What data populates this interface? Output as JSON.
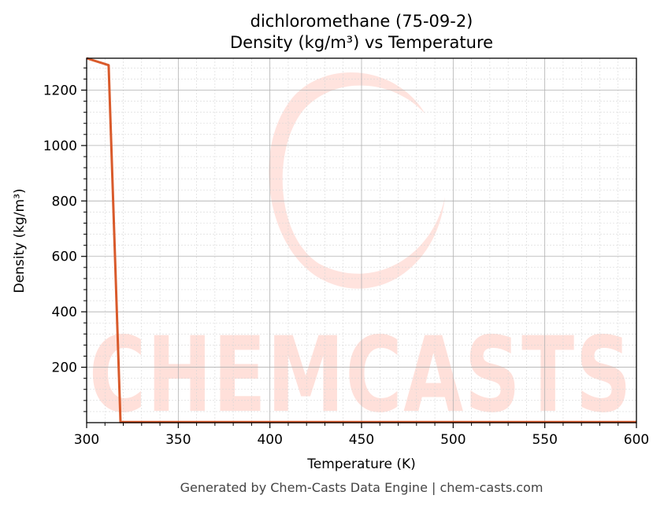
{
  "chart_data": {
    "type": "line",
    "title": "dichloromethane (75-09-2)",
    "subtitle": "Density (kg/m³) vs Temperature",
    "xlabel": "Temperature (K)",
    "ylabel": "Density (kg/m³)",
    "xlim": [
      300,
      600
    ],
    "ylim": [
      0,
      1315
    ],
    "x_ticks": [
      300,
      350,
      400,
      450,
      500,
      550,
      600
    ],
    "y_ticks": [
      200,
      400,
      600,
      800,
      1000,
      1200
    ],
    "grid": true,
    "legend": "none",
    "series": [
      {
        "color": "#d95a2b",
        "x": [
          300,
          312,
          318.5,
          320,
          600
        ],
        "y": [
          1315,
          1290,
          2,
          2,
          2
        ]
      }
    ]
  },
  "footer": "Generated by Chem-Casts Data Engine | chem-casts.com",
  "watermark": {
    "text": "CHEMCASTS",
    "color": "#ffe0da"
  }
}
